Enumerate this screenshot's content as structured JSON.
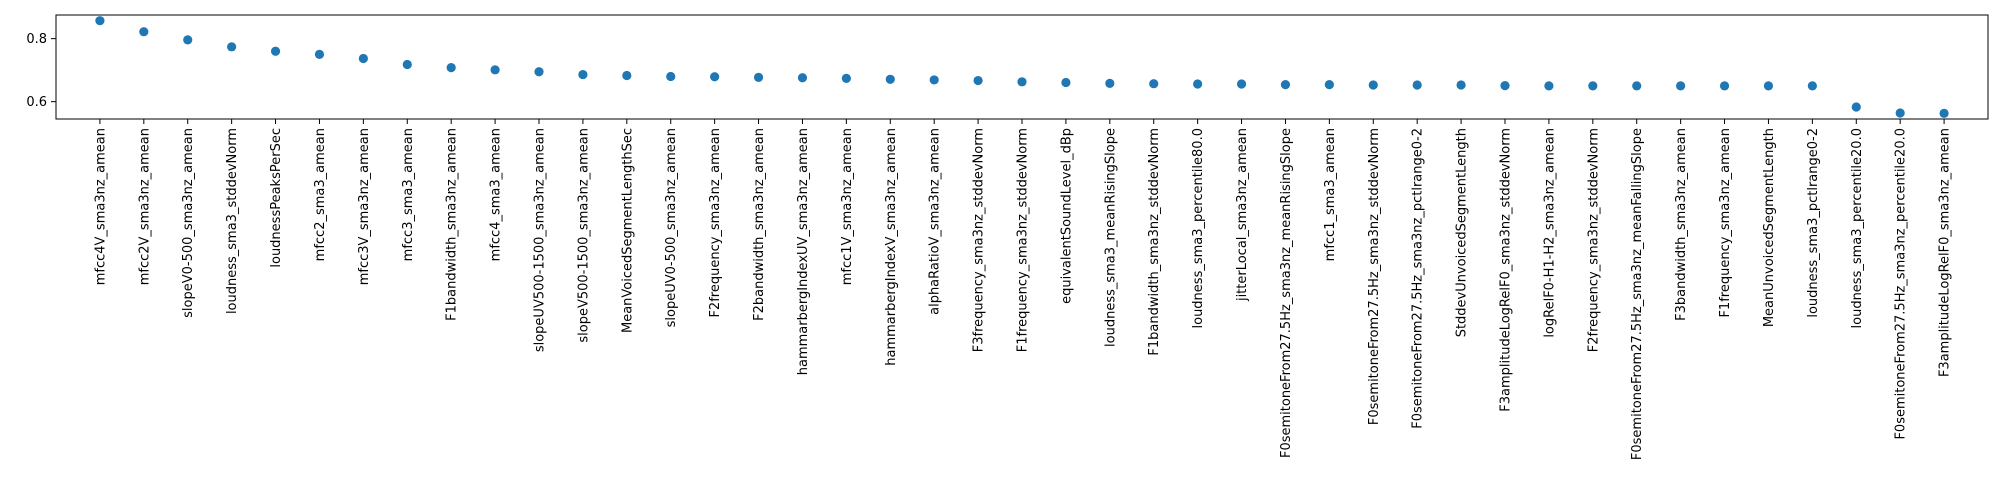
{
  "chart_data": {
    "type": "scatter",
    "title": "",
    "xlabel": "",
    "ylabel": "",
    "ylim": [
      0.545,
      0.875
    ],
    "yticks": [
      0.6,
      0.8
    ],
    "ytick_labels": [
      "0.6",
      "0.8"
    ],
    "grid": false,
    "marker_color": "#1f77b4",
    "categories": [
      "mfcc4V_sma3nz_amean",
      "mfcc2V_sma3nz_amean",
      "slopeV0-500_sma3nz_amean",
      "loudness_sma3_stddevNorm",
      "loudnessPeaksPerSec",
      "mfcc2_sma3_amean",
      "mfcc3V_sma3nz_amean",
      "mfcc3_sma3_amean",
      "F1bandwidth_sma3nz_amean",
      "mfcc4_sma3_amean",
      "slopeUV500-1500_sma3nz_amean",
      "slopeV500-1500_sma3nz_amean",
      "MeanVoicedSegmentLengthSec",
      "slopeUV0-500_sma3nz_amean",
      "F2frequency_sma3nz_amean",
      "F2bandwidth_sma3nz_amean",
      "hammarbergIndexUV_sma3nz_amean",
      "mfcc1V_sma3nz_amean",
      "hammarbergIndexV_sma3nz_amean",
      "alphaRatioV_sma3nz_amean",
      "F3frequency_sma3nz_stddevNorm",
      "F1frequency_sma3nz_stddevNorm",
      "equivalentSoundLevel_dBp",
      "loudness_sma3_meanRisingSlope",
      "F1bandwidth_sma3nz_stddevNorm",
      "loudness_sma3_percentile80.0",
      "jitterLocal_sma3nz_amean",
      "F0semitoneFrom27.5Hz_sma3nz_meanRisingSlope",
      "mfcc1_sma3_amean",
      "F0semitoneFrom27.5Hz_sma3nz_stddevNorm",
      "F0semitoneFrom27.5Hz_sma3nz_pctlrange0-2",
      "StddevUnvoicedSegmentLength",
      "F3amplitudeLogRelF0_sma3nz_stddevNorm",
      "logRelF0-H1-H2_sma3nz_amean",
      "F2frequency_sma3nz_stddevNorm",
      "F0semitoneFrom27.5Hz_sma3nz_meanFallingSlope",
      "F3bandwidth_sma3nz_amean",
      "F1frequency_sma3nz_amean",
      "MeanUnvoicedSegmentLength",
      "loudness_sma3_pctlrange0-2",
      "loudness_sma3_percentile20.0",
      "F0semitoneFrom27.5Hz_sma3nz_percentile20.0",
      "F3amplitudeLogRelF0_sma3nz_amean"
    ],
    "values": [
      0.857,
      0.822,
      0.796,
      0.774,
      0.76,
      0.75,
      0.737,
      0.718,
      0.708,
      0.701,
      0.695,
      0.686,
      0.683,
      0.68,
      0.679,
      0.677,
      0.676,
      0.674,
      0.671,
      0.669,
      0.667,
      0.663,
      0.661,
      0.658,
      0.657,
      0.656,
      0.656,
      0.654,
      0.654,
      0.653,
      0.653,
      0.653,
      0.651,
      0.65,
      0.65,
      0.65,
      0.65,
      0.65,
      0.65,
      0.65,
      0.583,
      0.564,
      0.563
    ]
  }
}
